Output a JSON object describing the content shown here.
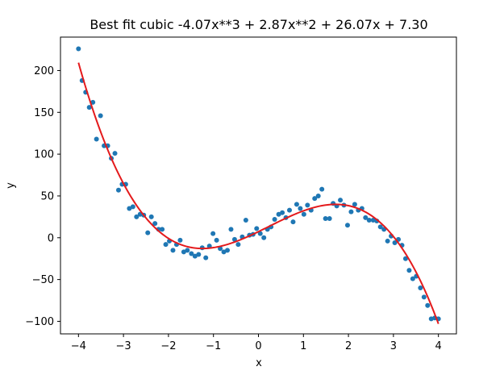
{
  "chart_data": {
    "type": "scatter",
    "title": "Best fit cubic -4.07x**3 + 2.87x**2 + 26.07x + 7.30",
    "xlabel": "x",
    "ylabel": "y",
    "xlim": [
      -4.4,
      4.4
    ],
    "ylim": [
      -115,
      240
    ],
    "xticks": [
      -4,
      -3,
      -2,
      -1,
      0,
      1,
      2,
      3,
      4
    ],
    "xtick_labels": [
      "−4",
      "−3",
      "−2",
      "−1",
      "0",
      "1",
      "2",
      "3",
      "4"
    ],
    "yticks": [
      -100,
      -50,
      0,
      50,
      100,
      150,
      200
    ],
    "ytick_labels": [
      "−100",
      "−50",
      "0",
      "50",
      "100",
      "150",
      "200"
    ],
    "grid": false,
    "colors": {
      "points": "#1f77b4",
      "fit": "#e41a1c",
      "axes": "#000000"
    },
    "series": [
      {
        "kind": "points",
        "x": [
          -4.0,
          -3.92,
          -3.84,
          -3.76,
          -3.68,
          -3.6,
          -3.51,
          -3.43,
          -3.35,
          -3.27,
          -3.19,
          -3.11,
          -3.03,
          -2.95,
          -2.87,
          -2.79,
          -2.71,
          -2.63,
          -2.55,
          -2.46,
          -2.38,
          -2.3,
          -2.22,
          -2.14,
          -2.06,
          -1.98,
          -1.9,
          -1.82,
          -1.74,
          -1.66,
          -1.58,
          -1.49,
          -1.41,
          -1.33,
          -1.25,
          -1.17,
          -1.09,
          -1.01,
          -0.93,
          -0.85,
          -0.77,
          -0.69,
          -0.61,
          -0.53,
          -0.45,
          -0.36,
          -0.28,
          -0.2,
          -0.12,
          -0.04,
          0.04,
          0.12,
          0.2,
          0.28,
          0.36,
          0.45,
          0.53,
          0.61,
          0.69,
          0.77,
          0.85,
          0.93,
          1.01,
          1.09,
          1.17,
          1.25,
          1.33,
          1.41,
          1.49,
          1.58,
          1.66,
          1.74,
          1.82,
          1.9,
          1.98,
          2.06,
          2.14,
          2.22,
          2.3,
          2.38,
          2.46,
          2.55,
          2.63,
          2.71,
          2.79,
          2.87,
          2.95,
          3.03,
          3.11,
          3.19,
          3.27,
          3.35,
          3.43,
          3.51,
          3.6,
          3.68,
          3.76,
          3.84,
          3.92,
          4.0
        ],
        "y": [
          226,
          188,
          174,
          156,
          162,
          118,
          146,
          110,
          110,
          95,
          101,
          57,
          64,
          64,
          35,
          37,
          25,
          28,
          27,
          6,
          25,
          17,
          10,
          10,
          -8,
          -4,
          -15,
          -8,
          -3,
          -17,
          -15,
          -19,
          -22,
          -20,
          -12,
          -24,
          -10,
          5,
          -3,
          -13,
          -17,
          -15,
          10,
          -2,
          -8,
          1,
          21,
          3,
          4,
          11,
          5,
          0,
          10,
          13,
          22,
          28,
          30,
          24,
          33,
          19,
          40,
          35,
          28,
          39,
          33,
          47,
          50,
          58,
          23,
          23,
          41,
          38,
          45,
          39,
          15,
          31,
          40,
          33,
          35,
          24,
          21,
          21,
          20,
          13,
          10,
          -4,
          2,
          -6,
          -2,
          -9,
          -25,
          -39,
          -49,
          -46,
          -60,
          -71,
          -81,
          -97,
          -96,
          -97
        ]
      },
      {
        "kind": "fit",
        "coefficients": [
          -4.07,
          2.87,
          26.07,
          7.3
        ],
        "x_range": [
          -4,
          4
        ]
      }
    ]
  }
}
